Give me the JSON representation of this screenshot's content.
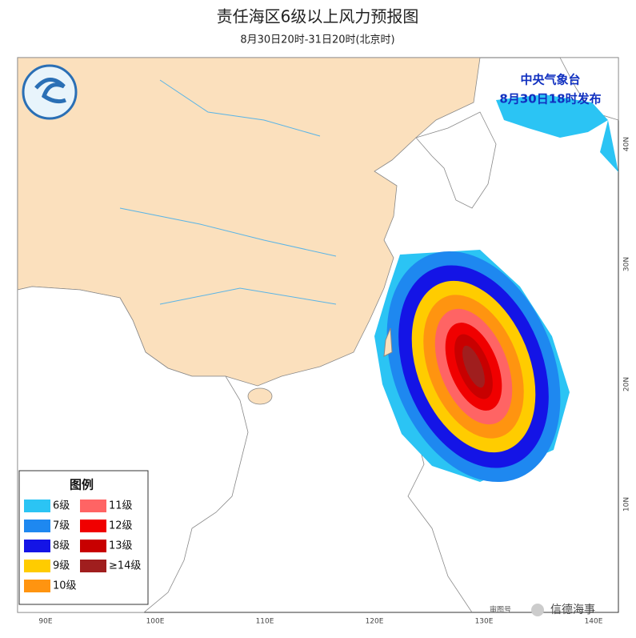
{
  "header": {
    "title": "责任海区6级以上风力预报图",
    "subtitle": "8月30日20时-31日20时(北京时)"
  },
  "issuer": {
    "agency": "中央气象台",
    "issued": "8月30日18时发布"
  },
  "map": {
    "lon_labels": [
      "90E",
      "100E",
      "110E",
      "120E",
      "130E",
      "140E"
    ],
    "lat_labels": [
      "40N",
      "30N",
      "20N",
      "10N"
    ]
  },
  "legend": {
    "title": "图例",
    "items": [
      {
        "label": "6级",
        "color": "#2bc4f4"
      },
      {
        "label": "7级",
        "color": "#1e88f0"
      },
      {
        "label": "8级",
        "color": "#1414e6"
      },
      {
        "label": "9级",
        "color": "#ffcc00"
      },
      {
        "label": "10级",
        "color": "#ff9410"
      },
      {
        "label": "11级",
        "color": "#ff6464"
      },
      {
        "label": "12级",
        "color": "#f00000"
      },
      {
        "label": "13级",
        "color": "#c80000"
      },
      {
        "label": "≥14级",
        "color": "#a01e1e"
      }
    ]
  },
  "footer": {
    "map_number": "审图号",
    "watermark": "信德海事"
  }
}
